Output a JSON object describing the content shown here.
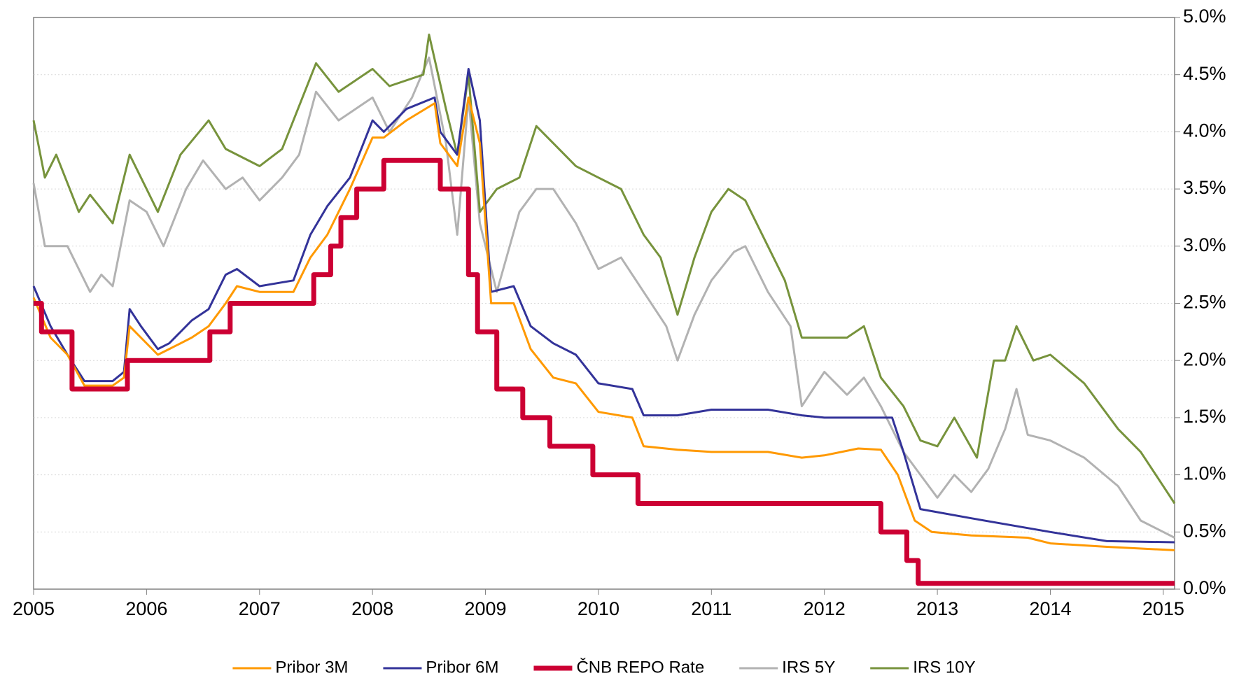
{
  "chart_data": {
    "type": "line",
    "xlim": [
      2005,
      2015.1
    ],
    "xticks": [
      2005,
      2006,
      2007,
      2008,
      2009,
      2010,
      2011,
      2012,
      2013,
      2014,
      2015
    ],
    "ylim": [
      0,
      5
    ],
    "yticks": [
      {
        "value": 0,
        "label": "0.0%"
      },
      {
        "value": 0.5,
        "label": "0.5%"
      },
      {
        "value": 1,
        "label": "1.0%"
      },
      {
        "value": 1.5,
        "label": "1.5%"
      },
      {
        "value": 2,
        "label": "2.0%"
      },
      {
        "value": 2.5,
        "label": "2.5%"
      },
      {
        "value": 3,
        "label": "3.0%"
      },
      {
        "value": 3.5,
        "label": "3.5%"
      },
      {
        "value": 4,
        "label": "4.0%"
      },
      {
        "value": 4.5,
        "label": "4.5%"
      },
      {
        "value": 5,
        "label": "5.0%"
      }
    ],
    "grid": true,
    "legend": "bottom",
    "series": [
      {
        "name": "Pribor 3M",
        "color": "#ff9900",
        "width": 3,
        "x": [
          2005.0,
          2005.15,
          2005.3,
          2005.45,
          2005.7,
          2005.8,
          2005.85,
          2005.95,
          2006.1,
          2006.2,
          2006.4,
          2006.55,
          2006.7,
          2006.8,
          2007.0,
          2007.3,
          2007.45,
          2007.6,
          2007.8,
          2008.0,
          2008.1,
          2008.3,
          2008.55,
          2008.6,
          2008.75,
          2008.85,
          2008.95,
          2009.05,
          2009.25,
          2009.4,
          2009.6,
          2009.8,
          2010.0,
          2010.3,
          2010.4,
          2010.7,
          2011.0,
          2011.5,
          2011.8,
          2012.0,
          2012.3,
          2012.5,
          2012.65,
          2012.8,
          2012.95,
          2013.3,
          2013.8,
          2014.0,
          2014.5,
          2015.1
        ],
        "values": [
          2.55,
          2.2,
          2.05,
          1.78,
          1.78,
          1.85,
          2.3,
          2.2,
          2.05,
          2.1,
          2.2,
          2.3,
          2.5,
          2.65,
          2.6,
          2.6,
          2.9,
          3.1,
          3.5,
          3.95,
          3.95,
          4.1,
          4.25,
          3.9,
          3.7,
          4.3,
          3.9,
          2.5,
          2.5,
          2.1,
          1.85,
          1.8,
          1.55,
          1.5,
          1.25,
          1.22,
          1.2,
          1.2,
          1.15,
          1.17,
          1.23,
          1.22,
          1.0,
          0.6,
          0.5,
          0.47,
          0.45,
          0.4,
          0.37,
          0.34
        ]
      },
      {
        "name": "Pribor 6M",
        "color": "#333399",
        "width": 3,
        "x": [
          2005.0,
          2005.15,
          2005.3,
          2005.45,
          2005.7,
          2005.8,
          2005.85,
          2005.95,
          2006.1,
          2006.2,
          2006.4,
          2006.55,
          2006.7,
          2006.8,
          2007.0,
          2007.3,
          2007.45,
          2007.6,
          2007.8,
          2008.0,
          2008.1,
          2008.3,
          2008.55,
          2008.6,
          2008.75,
          2008.85,
          2008.95,
          2009.05,
          2009.25,
          2009.4,
          2009.6,
          2009.8,
          2010.0,
          2010.3,
          2010.4,
          2010.7,
          2011.0,
          2011.5,
          2011.8,
          2012.0,
          2012.3,
          2012.6,
          2012.7,
          2012.85,
          2013.3,
          2014.0,
          2014.5,
          2015.1
        ],
        "values": [
          2.65,
          2.3,
          2.05,
          1.82,
          1.82,
          1.9,
          2.45,
          2.3,
          2.1,
          2.15,
          2.35,
          2.45,
          2.75,
          2.8,
          2.65,
          2.7,
          3.1,
          3.35,
          3.6,
          4.1,
          4.0,
          4.2,
          4.3,
          4.0,
          3.8,
          4.55,
          4.1,
          2.6,
          2.65,
          2.3,
          2.15,
          2.05,
          1.8,
          1.75,
          1.52,
          1.52,
          1.57,
          1.57,
          1.52,
          1.5,
          1.5,
          1.5,
          1.2,
          0.7,
          0.62,
          0.5,
          0.42,
          0.41
        ]
      },
      {
        "name": "ČNB REPO Rate",
        "color": "#cc0033",
        "width": 7,
        "x": [
          2005.0,
          2005.07,
          2005.07,
          2005.34,
          2005.34,
          2005.83,
          2005.83,
          2006.56,
          2006.56,
          2006.74,
          2006.74,
          2007.48,
          2007.48,
          2007.63,
          2007.63,
          2007.72,
          2007.72,
          2007.86,
          2007.86,
          2008.1,
          2008.1,
          2008.6,
          2008.6,
          2008.85,
          2008.85,
          2008.93,
          2008.93,
          2009.1,
          2009.1,
          2009.33,
          2009.33,
          2009.57,
          2009.57,
          2009.95,
          2009.95,
          2010.35,
          2010.35,
          2012.5,
          2012.5,
          2012.73,
          2012.73,
          2012.83,
          2012.83,
          2015.1
        ],
        "values": [
          2.5,
          2.5,
          2.25,
          2.25,
          1.75,
          1.75,
          2.0,
          2.0,
          2.25,
          2.25,
          2.5,
          2.5,
          2.75,
          2.75,
          3.0,
          3.0,
          3.25,
          3.25,
          3.5,
          3.5,
          3.75,
          3.75,
          3.5,
          3.5,
          2.75,
          2.75,
          2.25,
          2.25,
          1.75,
          1.75,
          1.5,
          1.5,
          1.25,
          1.25,
          1.0,
          1.0,
          0.75,
          0.75,
          0.5,
          0.5,
          0.25,
          0.25,
          0.05,
          0.05
        ]
      },
      {
        "name": "IRS 5Y",
        "color": "#b2b2b2",
        "width": 3,
        "x": [
          2005.0,
          2005.1,
          2005.3,
          2005.5,
          2005.6,
          2005.7,
          2005.85,
          2006.0,
          2006.15,
          2006.35,
          2006.5,
          2006.7,
          2006.85,
          2007.0,
          2007.2,
          2007.35,
          2007.5,
          2007.7,
          2008.0,
          2008.15,
          2008.35,
          2008.5,
          2008.65,
          2008.75,
          2008.85,
          2008.95,
          2009.1,
          2009.3,
          2009.45,
          2009.6,
          2009.8,
          2010.0,
          2010.2,
          2010.4,
          2010.6,
          2010.7,
          2010.85,
          2011.0,
          2011.2,
          2011.3,
          2011.5,
          2011.7,
          2011.8,
          2012.0,
          2012.2,
          2012.35,
          2012.5,
          2012.7,
          2012.85,
          2013.0,
          2013.15,
          2013.3,
          2013.45,
          2013.6,
          2013.7,
          2013.8,
          2014.0,
          2014.3,
          2014.6,
          2014.8,
          2015.0,
          2015.1
        ],
        "values": [
          3.55,
          3.0,
          3.0,
          2.6,
          2.75,
          2.65,
          3.4,
          3.3,
          3.0,
          3.5,
          3.75,
          3.5,
          3.6,
          3.4,
          3.6,
          3.8,
          4.35,
          4.1,
          4.3,
          4.0,
          4.3,
          4.65,
          3.9,
          3.1,
          4.3,
          3.2,
          2.6,
          3.3,
          3.5,
          3.5,
          3.2,
          2.8,
          2.9,
          2.6,
          2.3,
          2.0,
          2.4,
          2.7,
          2.95,
          3.0,
          2.6,
          2.3,
          1.6,
          1.9,
          1.7,
          1.85,
          1.6,
          1.2,
          1.0,
          0.8,
          1.0,
          0.85,
          1.05,
          1.4,
          1.75,
          1.35,
          1.3,
          1.15,
          0.9,
          0.6,
          0.5,
          0.45
        ]
      },
      {
        "name": "IRS 10Y",
        "color": "#77933c",
        "width": 3,
        "x": [
          2005.0,
          2005.1,
          2005.2,
          2005.4,
          2005.5,
          2005.7,
          2005.85,
          2006.0,
          2006.1,
          2006.3,
          2006.55,
          2006.7,
          2007.0,
          2007.2,
          2007.5,
          2007.7,
          2008.0,
          2008.15,
          2008.45,
          2008.5,
          2008.65,
          2008.75,
          2008.85,
          2008.95,
          2009.1,
          2009.3,
          2009.45,
          2009.6,
          2009.8,
          2010.0,
          2010.2,
          2010.4,
          2010.55,
          2010.7,
          2010.85,
          2011.0,
          2011.15,
          2011.3,
          2011.5,
          2011.65,
          2011.8,
          2012.0,
          2012.2,
          2012.35,
          2012.5,
          2012.7,
          2012.85,
          2013.0,
          2013.15,
          2013.35,
          2013.5,
          2013.6,
          2013.7,
          2013.85,
          2014.0,
          2014.3,
          2014.6,
          2014.8,
          2015.0,
          2015.1
        ],
        "values": [
          4.1,
          3.6,
          3.8,
          3.3,
          3.45,
          3.2,
          3.8,
          3.5,
          3.3,
          3.8,
          4.1,
          3.85,
          3.7,
          3.85,
          4.6,
          4.35,
          4.55,
          4.4,
          4.5,
          4.85,
          4.2,
          3.8,
          4.5,
          3.3,
          3.5,
          3.6,
          4.05,
          3.9,
          3.7,
          3.6,
          3.5,
          3.1,
          2.9,
          2.4,
          2.9,
          3.3,
          3.5,
          3.4,
          3.0,
          2.7,
          2.2,
          2.2,
          2.2,
          2.3,
          1.85,
          1.6,
          1.3,
          1.25,
          1.5,
          1.15,
          2.0,
          2.0,
          2.3,
          2.0,
          2.05,
          1.8,
          1.4,
          1.2,
          0.9,
          0.75
        ]
      }
    ]
  }
}
